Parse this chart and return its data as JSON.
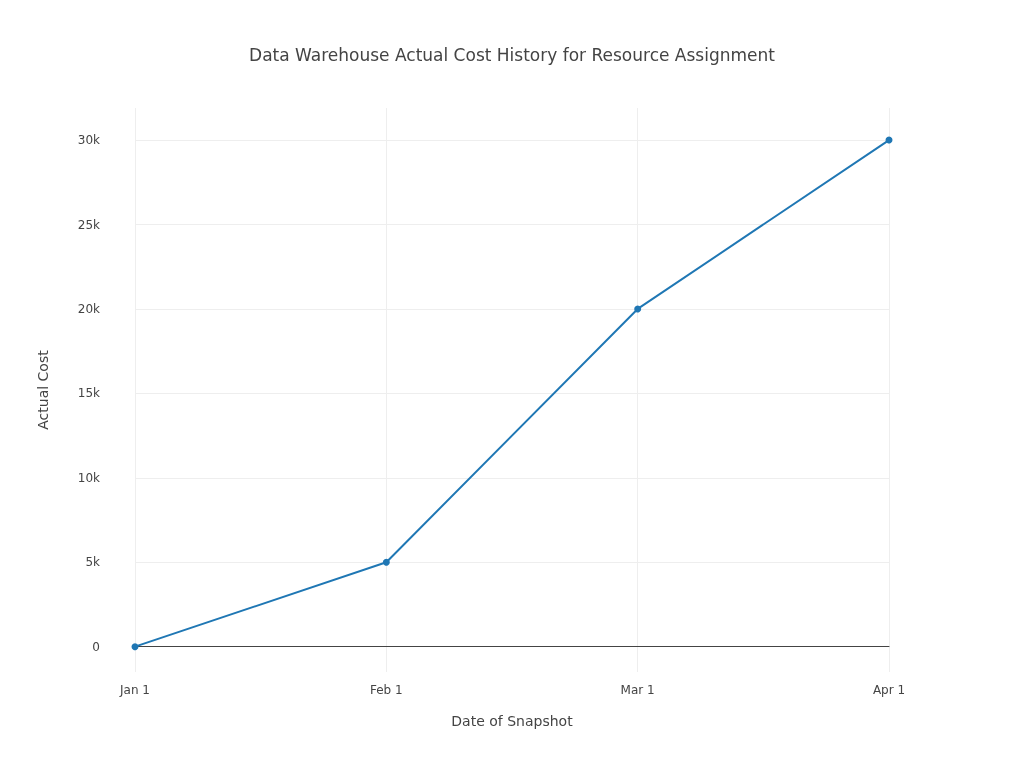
{
  "chart_data": {
    "type": "line",
    "title": "Data Warehouse Actual Cost History for Resource Assignment",
    "xlabel": "Date of Snapshot",
    "ylabel": "Actual Cost",
    "categories": [
      "Jan 1",
      "Feb 1",
      "Mar 1",
      "Apr 1"
    ],
    "series": [
      {
        "color": "#1f77b4",
        "values": [
          0,
          5000,
          20000,
          30000
        ]
      }
    ],
    "ylim": [
      -1500,
      31900
    ],
    "yticks": [
      {
        "value": 0,
        "label": "0"
      },
      {
        "value": 5000,
        "label": "5k"
      },
      {
        "value": 10000,
        "label": "10k"
      },
      {
        "value": 15000,
        "label": "15k"
      },
      {
        "value": 20000,
        "label": "20k"
      },
      {
        "value": 25000,
        "label": "25k"
      },
      {
        "value": 30000,
        "label": "30k"
      }
    ],
    "grid": true,
    "marker": "circle",
    "line_style": "solid"
  }
}
